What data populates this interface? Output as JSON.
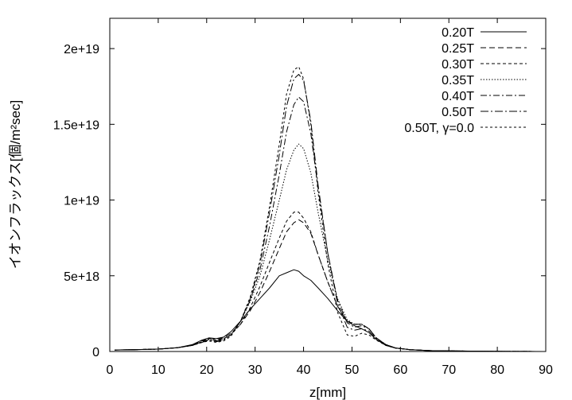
{
  "chart_data": {
    "type": "line",
    "title": "",
    "xlabel": "z[mm]",
    "ylabel": "イオンフラックス[個/m²sec]",
    "xlim": [
      0,
      90
    ],
    "ylim": [
      0,
      2.2e+19
    ],
    "x_ticks": [
      0,
      10,
      20,
      30,
      40,
      50,
      60,
      70,
      80,
      90
    ],
    "x_tick_labels": [
      "0",
      "10",
      "20",
      "30",
      "40",
      "50",
      "60",
      "70",
      "80",
      "90"
    ],
    "y_ticks": [
      0,
      5e+18,
      1e+19,
      1.5e+19,
      2e+19
    ],
    "y_tick_labels": [
      "0",
      "5e+18",
      "1e+19",
      "1.5e+19",
      "2e+19"
    ],
    "grid": false,
    "legend_position": "top-right",
    "x": [
      1,
      5,
      10,
      14,
      17,
      19,
      20.5,
      22,
      23.5,
      25,
      27,
      29,
      31,
      33,
      35,
      36.5,
      38,
      39,
      40,
      41.5,
      43,
      45,
      47,
      49,
      50.5,
      52,
      53.5,
      55,
      57,
      59,
      62,
      66,
      72,
      80,
      90
    ],
    "series": [
      {
        "name": "0.20T",
        "dash": "solid",
        "values": [
          1e+17,
          1.2e+17,
          1.6e+17,
          2.5e+17,
          4.5e+17,
          7.5e+17,
          9e+17,
          8.5e+17,
          9.5e+17,
          1.3e+18,
          2e+18,
          2.8e+18,
          3.5e+18,
          4.2e+18,
          5e+18,
          5.2e+18,
          5.4e+18,
          5.3e+18,
          5e+18,
          4.7e+18,
          4.2e+18,
          3.5e+18,
          2.7e+18,
          2e+18,
          1.7e+18,
          1.5e+18,
          1.25e+18,
          8e+17,
          4e+17,
          2.2e+17,
          1.2e+17,
          6e+16,
          3e+16,
          1e+16,
          0
        ]
      },
      {
        "name": "0.25T",
        "dash": "7,4",
        "values": [
          1e+17,
          1.2e+17,
          1.6e+17,
          2.5e+17,
          4e+17,
          7e+17,
          9e+17,
          8e+17,
          9e+17,
          1.2e+18,
          1.8e+18,
          2.7e+18,
          3.9e+18,
          5.3e+18,
          6.8e+18,
          7.9e+18,
          8.5e+18,
          8.7e+18,
          8.5e+18,
          7.8e+18,
          6.4e+18,
          4.6e+18,
          3e+18,
          2e+18,
          1.8e+18,
          1.8e+18,
          1.5e+18,
          9e+17,
          4.5e+17,
          2.3e+17,
          1.2e+17,
          6e+16,
          3e+16,
          1e+16,
          0
        ]
      },
      {
        "name": "0.30T",
        "dash": "4,3",
        "values": [
          1e+17,
          1.2e+17,
          1.6e+17,
          2.5e+17,
          4e+17,
          6.5e+17,
          8.5e+17,
          7.5e+17,
          8.5e+17,
          1.1e+18,
          1.8e+18,
          2.9e+18,
          4.3e+18,
          5.9e+18,
          7.5e+18,
          8.6e+18,
          9.2e+18,
          9.2e+18,
          8.8e+18,
          7.9e+18,
          6.4e+18,
          4.6e+18,
          3e+18,
          2e+18,
          1.8e+18,
          1.8e+18,
          1.5e+18,
          9e+17,
          4.5e+17,
          2.3e+17,
          1.2e+17,
          6e+16,
          3e+16,
          1e+16,
          0
        ]
      },
      {
        "name": "0.35T",
        "dash": "1.5,2",
        "values": [
          1e+17,
          1.2e+17,
          1.6e+17,
          2.5e+17,
          4e+17,
          6.5e+17,
          8e+17,
          7e+17,
          8e+17,
          1.1e+18,
          2e+18,
          3.3e+18,
          5e+18,
          7.4e+18,
          1e+19,
          1.2e+19,
          1.33e+19,
          1.37e+19,
          1.34e+19,
          1.18e+19,
          9.2e+18,
          6e+18,
          3.5e+18,
          2.1e+18,
          1.8e+18,
          1.8e+18,
          1.5e+18,
          9e+17,
          4.5e+17,
          2.3e+17,
          1.2e+17,
          6e+16,
          3e+16,
          1e+16,
          0
        ]
      },
      {
        "name": "0.40T",
        "dash": "8,3,2,3",
        "values": [
          1e+17,
          1.2e+17,
          1.6e+17,
          2.5e+17,
          4e+17,
          6e+17,
          8e+17,
          7e+17,
          8e+17,
          1.1e+18,
          2e+18,
          3.4e+18,
          5.4e+18,
          8.3e+18,
          1.17e+19,
          1.45e+19,
          1.63e+19,
          1.68e+19,
          1.65e+19,
          1.44e+19,
          1.08e+19,
          6.5e+18,
          3.4e+18,
          1.9e+18,
          1.6e+18,
          1.7e+18,
          1.5e+18,
          9e+17,
          4.5e+17,
          2.3e+17,
          1.2e+17,
          6e+16,
          3e+16,
          1e+16,
          0
        ]
      },
      {
        "name": "0.50T",
        "dash": "10,3,2,3",
        "values": [
          1e+17,
          1.2e+17,
          1.6e+17,
          2.5e+17,
          4e+17,
          6e+17,
          7.5e+17,
          6.5e+17,
          7.5e+17,
          1.1e+18,
          2e+18,
          3.5e+18,
          5.8e+18,
          9.2e+18,
          1.3e+19,
          1.62e+19,
          1.8e+19,
          1.83e+19,
          1.79e+19,
          1.52e+19,
          1.1e+19,
          6.5e+18,
          3.2e+18,
          1.6e+18,
          1.4e+18,
          1.5e+18,
          1.35e+18,
          8.5e+17,
          4.5e+17,
          2.3e+17,
          1.2e+17,
          6e+16,
          3e+16,
          1e+16,
          0
        ]
      },
      {
        "name": "0.50T, γ=0.0",
        "dash": "3,3",
        "values": [
          1e+17,
          1.2e+17,
          1.6e+17,
          2.5e+17,
          4e+17,
          6e+17,
          7e+17,
          6e+17,
          7e+17,
          1e+18,
          2e+18,
          3.6e+18,
          6e+18,
          9.6e+18,
          1.37e+19,
          1.7e+19,
          1.86e+19,
          1.88e+19,
          1.8e+19,
          1.5e+19,
          1.05e+19,
          5.8e+18,
          2.6e+18,
          1.1e+18,
          1e+18,
          1.2e+18,
          1.1e+18,
          7.5e+17,
          4e+17,
          2.2e+17,
          1.2e+17,
          6e+16,
          3e+16,
          1e+16,
          0
        ]
      }
    ]
  }
}
